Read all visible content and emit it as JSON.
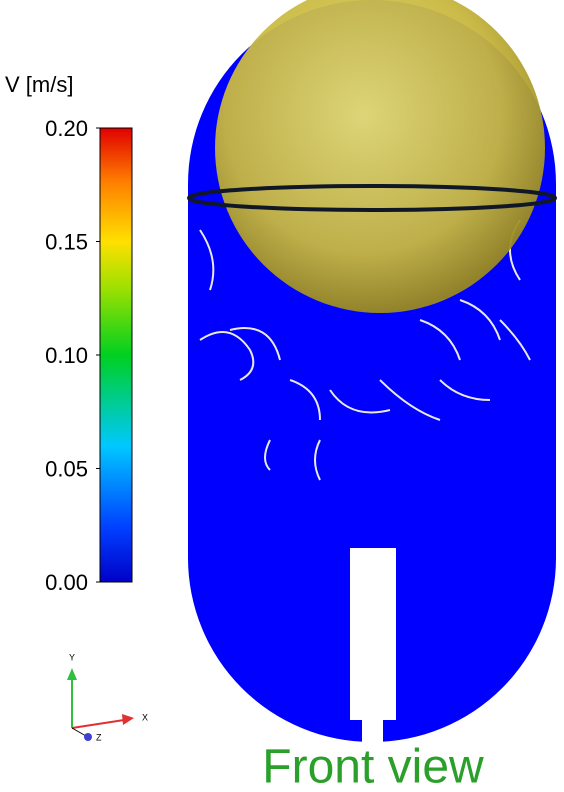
{
  "colorbar": {
    "title": "V [m/s]",
    "range": [
      0,
      0.2
    ],
    "ticks": [
      {
        "value": 0.2,
        "label": "0.20"
      },
      {
        "value": 0.15,
        "label": "0.15"
      },
      {
        "value": 0.1,
        "label": "0.10"
      },
      {
        "value": 0.05,
        "label": "0.05"
      },
      {
        "value": 0,
        "label": "0.00"
      }
    ]
  },
  "triad": {
    "y": "Y",
    "x": "X",
    "z": "Z"
  },
  "caption": "Front view"
}
